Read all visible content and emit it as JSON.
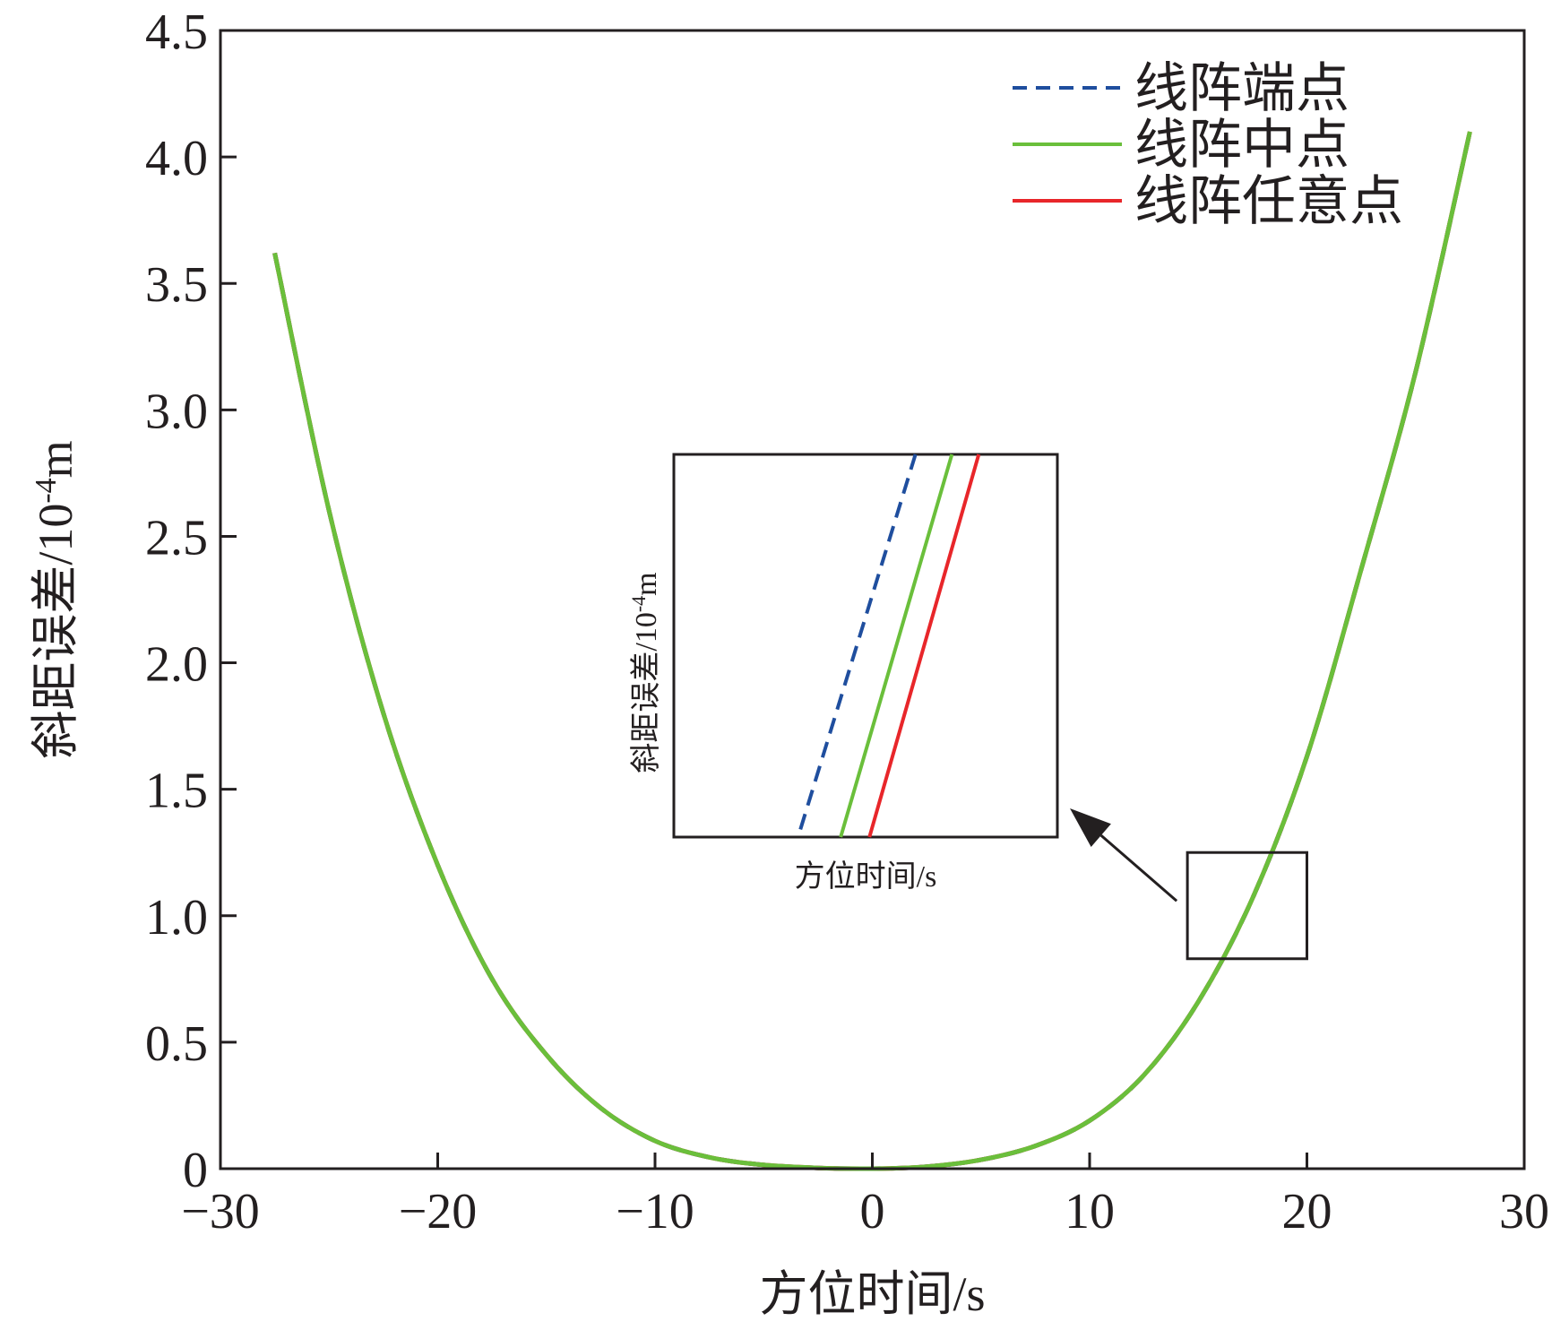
{
  "chart_data": {
    "type": "line",
    "xlabel": "方位时间/s",
    "ylabel": {
      "main": "斜距误差/10",
      "exp": "-4",
      "unit": "m"
    },
    "xlim": [
      -30,
      30
    ],
    "ylim": [
      0,
      4.5
    ],
    "xticks": [
      -30,
      -20,
      -10,
      0,
      10,
      20,
      30
    ],
    "xtick_labels": [
      "−30",
      "−20",
      "−10",
      "0",
      "10",
      "20",
      "30"
    ],
    "yticks": [
      0,
      0.5,
      1.0,
      1.5,
      2.0,
      2.5,
      3.0,
      3.5,
      4.0,
      4.5
    ],
    "ytick_labels": [
      "0",
      "0.5",
      "1.0",
      "1.5",
      "2.0",
      "2.5",
      "3.0",
      "3.5",
      "4.0",
      "4.5"
    ],
    "grid": false,
    "legend_position": "top-right",
    "series": [
      {
        "name": "线阵端点",
        "color": "#1f4e9e",
        "dash": true,
        "x": [
          -27.5,
          -25,
          -22.5,
          -20,
          -17.5,
          -15,
          -12.5,
          -10,
          -7.5,
          -5,
          -2.5,
          0,
          2.5,
          5,
          7.5,
          10,
          12.5,
          15,
          17.5,
          20,
          22.5,
          25,
          27.5
        ],
        "y": [
          3.62,
          2.6,
          1.8,
          1.2,
          0.75,
          0.45,
          0.24,
          0.11,
          0.045,
          0.015,
          0.003,
          0,
          0.008,
          0.035,
          0.09,
          0.19,
          0.37,
          0.66,
          1.07,
          1.63,
          2.37,
          3.15,
          4.1
        ]
      },
      {
        "name": "线阵中点",
        "color": "#6abf3b",
        "dash": false,
        "x": [
          -27.5,
          -25,
          -22.5,
          -20,
          -17.5,
          -15,
          -12.5,
          -10,
          -7.5,
          -5,
          -2.5,
          0,
          2.5,
          5,
          7.5,
          10,
          12.5,
          15,
          17.5,
          20,
          22.5,
          25,
          27.5
        ],
        "y": [
          3.62,
          2.6,
          1.8,
          1.2,
          0.75,
          0.45,
          0.24,
          0.11,
          0.045,
          0.015,
          0.003,
          0,
          0.008,
          0.035,
          0.09,
          0.19,
          0.37,
          0.66,
          1.07,
          1.63,
          2.37,
          3.15,
          4.1
        ]
      },
      {
        "name": "线阵任意点",
        "color": "#e8262a",
        "dash": false,
        "x": [
          -27.5,
          -25,
          -22.5,
          -20,
          -17.5,
          -15,
          -12.5,
          -10,
          -7.5,
          -5,
          -2.5,
          0,
          2.5,
          5,
          7.5,
          10,
          12.5,
          15,
          17.5,
          20,
          22.5,
          25,
          27.5
        ],
        "y": [
          3.62,
          2.6,
          1.8,
          1.2,
          0.75,
          0.45,
          0.24,
          0.11,
          0.045,
          0.015,
          0.003,
          0,
          0.008,
          0.035,
          0.09,
          0.19,
          0.37,
          0.66,
          1.07,
          1.63,
          2.37,
          3.15,
          4.1
        ]
      }
    ],
    "zoom_region": {
      "x": [
        14.5,
        20
      ],
      "y": [
        0.83,
        1.25
      ]
    },
    "inset": {
      "xlabel": "方位时间/s",
      "ylabel": {
        "main": "斜距误差/10",
        "exp": "-4",
        "unit": "m"
      },
      "xlim": [
        0,
        1
      ],
      "ylim": [
        0,
        1
      ],
      "lines": [
        {
          "series": "线阵端点",
          "x": [
            0.33,
            0.63
          ],
          "y": [
            0.02,
            1.0
          ]
        },
        {
          "series": "线阵中点",
          "x": [
            0.435,
            0.725
          ],
          "y": [
            0.0,
            1.0
          ]
        },
        {
          "series": "线阵任意点",
          "x": [
            0.51,
            0.795
          ],
          "y": [
            0.0,
            1.0
          ]
        }
      ]
    }
  }
}
